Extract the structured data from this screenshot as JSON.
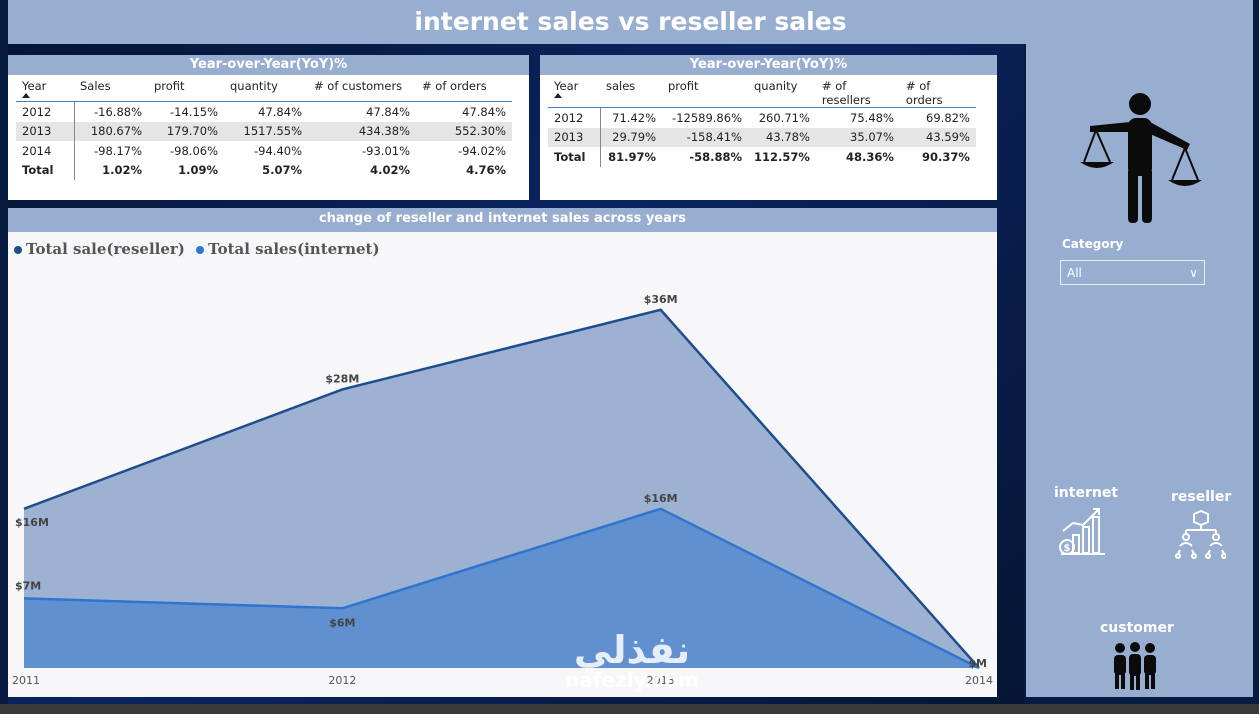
{
  "page_title": "internet sales vs reseller sales",
  "table_internet": {
    "title": "Year-over-Year(YoY)%",
    "columns": [
      "Year",
      "Sales",
      "profit",
      "quantity",
      "# of customers",
      "# of orders"
    ],
    "rows": [
      [
        "2012",
        "-16.88%",
        "-14.15%",
        "47.84%",
        "47.84%",
        "47.84%"
      ],
      [
        "2013",
        "180.67%",
        "179.70%",
        "1517.55%",
        "434.38%",
        "552.30%"
      ],
      [
        "2014",
        "-98.17%",
        "-98.06%",
        "-94.40%",
        "-93.01%",
        "-94.02%"
      ]
    ],
    "total": [
      "Total",
      "1.02%",
      "1.09%",
      "5.07%",
      "4.02%",
      "4.76%"
    ]
  },
  "table_reseller": {
    "title": "Year-over-Year(YoY)%",
    "columns": [
      "Year",
      "sales",
      "profit",
      "quanity",
      "# of resellers",
      "# of orders"
    ],
    "rows": [
      [
        "2012",
        "71.42%",
        "-12589.86%",
        "260.71%",
        "75.48%",
        "69.82%"
      ],
      [
        "2013",
        "29.79%",
        "-158.41%",
        "43.78%",
        "35.07%",
        "43.59%"
      ]
    ],
    "total": [
      "Total",
      "81.97%",
      "-58.88%",
      "112.57%",
      "48.36%",
      "90.37%"
    ]
  },
  "chart_data": {
    "type": "area",
    "title": "change of reseller and internet sales across years",
    "x": [
      "2011",
      "2012",
      "2013",
      "2014"
    ],
    "series": [
      {
        "name": "Total sale(reseller)",
        "values": [
          16,
          28,
          36,
          0
        ],
        "labels": [
          "$16M",
          "$28M",
          "$36M",
          ""
        ],
        "color": "#1f4e8c"
      },
      {
        "name": "Total sales(internet)",
        "values": [
          7,
          6,
          16,
          0
        ],
        "labels": [
          "$7M",
          "$6M",
          "$16M",
          "$M"
        ],
        "color": "#2f74cf"
      }
    ],
    "ylim": [
      0,
      40
    ],
    "grid": false,
    "legend_position": "top-left"
  },
  "sidebar": {
    "category_label": "Category",
    "category_value": "All",
    "internet_label": "internet",
    "reseller_label": "reseller",
    "customer_label": "customer"
  },
  "watermark": {
    "arabic": "نفذلي",
    "latin": "nafezly.com"
  },
  "colors": {
    "accent": "#98aed0",
    "reseller_line": "#1f4e8c",
    "internet_line": "#2f74cf"
  }
}
